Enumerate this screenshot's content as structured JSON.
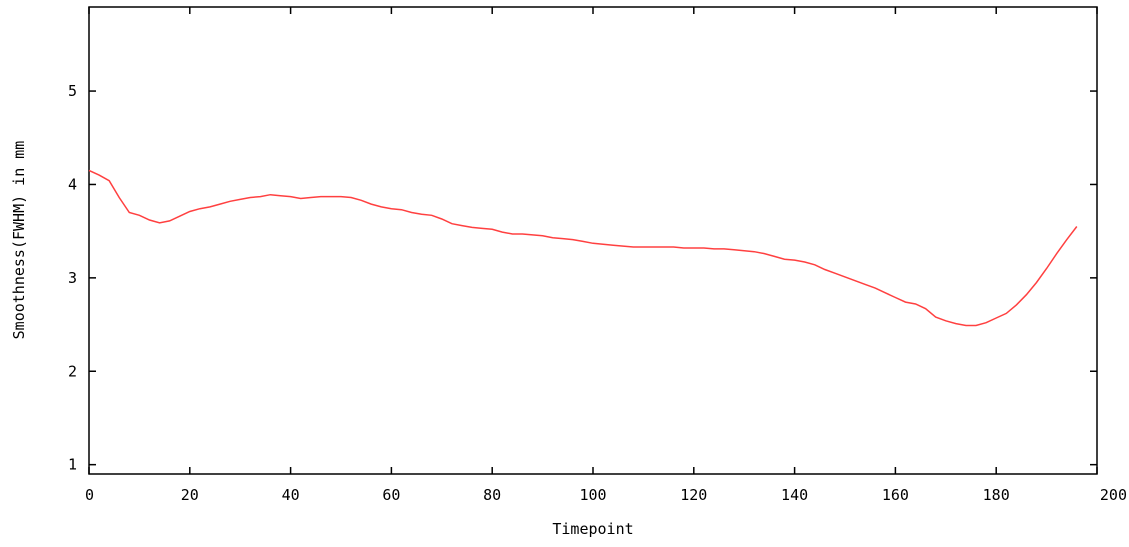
{
  "chart_data": {
    "type": "line",
    "xlabel": "Timepoint",
    "ylabel": "Smoothness(FWHM) in mm",
    "xlim": [
      0,
      200
    ],
    "ylim": [
      0.9,
      5.9
    ],
    "xticks": [
      "0",
      "20",
      "40",
      "60",
      "80",
      "100",
      "120",
      "140",
      "160",
      "180",
      "200"
    ],
    "yticks": [
      "1",
      "2",
      "3",
      "4",
      "5"
    ],
    "grid": false,
    "line_color": "#ff4040",
    "series": [
      {
        "x": [
          0,
          2,
          4,
          6,
          8,
          10,
          12,
          14,
          16,
          18,
          20,
          22,
          24,
          26,
          28,
          30,
          32,
          34,
          36,
          38,
          40,
          42,
          44,
          46,
          48,
          50,
          52,
          54,
          56,
          58,
          60,
          62,
          64,
          66,
          68,
          70,
          72,
          74,
          76,
          78,
          80,
          82,
          84,
          86,
          88,
          90,
          92,
          94,
          96,
          98,
          100,
          102,
          104,
          106,
          108,
          110,
          112,
          114,
          116,
          118,
          120,
          122,
          124,
          126,
          128,
          130,
          132,
          134,
          136,
          138,
          140,
          142,
          144,
          146,
          148,
          150,
          152,
          154,
          156,
          158,
          160,
          162,
          164,
          166,
          168,
          170,
          172,
          174,
          176,
          178,
          180,
          182,
          184,
          186,
          188,
          190,
          192,
          194,
          196
        ],
        "y": [
          4.15,
          4.1,
          4.04,
          3.86,
          3.7,
          3.67,
          3.62,
          3.59,
          3.61,
          3.66,
          3.71,
          3.74,
          3.76,
          3.79,
          3.82,
          3.84,
          3.86,
          3.87,
          3.89,
          3.88,
          3.87,
          3.85,
          3.86,
          3.87,
          3.87,
          3.87,
          3.86,
          3.83,
          3.79,
          3.76,
          3.74,
          3.73,
          3.7,
          3.68,
          3.67,
          3.63,
          3.58,
          3.56,
          3.54,
          3.53,
          3.52,
          3.49,
          3.47,
          3.47,
          3.46,
          3.45,
          3.43,
          3.42,
          3.41,
          3.39,
          3.37,
          3.36,
          3.35,
          3.34,
          3.33,
          3.33,
          3.33,
          3.33,
          3.33,
          3.32,
          3.32,
          3.32,
          3.31,
          3.31,
          3.3,
          3.29,
          3.28,
          3.26,
          3.23,
          3.2,
          3.19,
          3.17,
          3.14,
          3.09,
          3.05,
          3.01,
          2.97,
          2.93,
          2.89,
          2.84,
          2.79,
          2.74,
          2.72,
          2.67,
          2.58,
          2.54,
          2.51,
          2.49,
          2.49,
          2.52,
          2.57,
          2.62,
          2.71,
          2.82,
          2.95,
          3.1,
          3.26,
          3.41,
          3.55
        ]
      }
    ]
  }
}
